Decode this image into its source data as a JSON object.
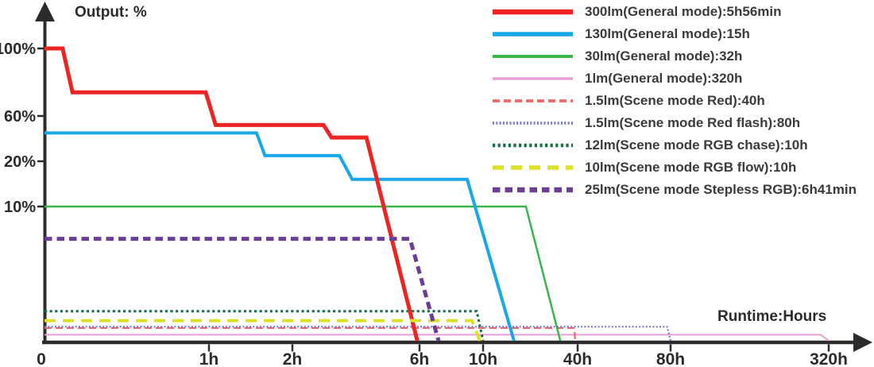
{
  "axes": {
    "y_title": "Output: %",
    "x_title": "Runtime:Hours"
  },
  "chart_data": {
    "type": "line",
    "xlabel": "Runtime:Hours",
    "ylabel": "Output: %",
    "grid": false,
    "legend_position": "top-right",
    "x_scale": "piecewise-nonlinear",
    "y_scale": "piecewise-nonlinear",
    "axis_color": "#2d2a2b",
    "x_ticks": {
      "values": [
        0,
        1,
        2,
        6,
        10,
        40,
        80,
        320
      ],
      "labels": [
        "0",
        "1h",
        "2h",
        "6h",
        "10h",
        "40h",
        "80h",
        "320h"
      ]
    },
    "y_ticks": {
      "values": [
        100,
        60,
        20,
        10
      ],
      "labels": [
        "100%",
        "60%",
        "20%",
        "10%"
      ]
    },
    "series": [
      {
        "id": "300lm-general",
        "name": "300lm(General mode):5h56min",
        "color": "#ed2424",
        "line": "solid",
        "width": 5,
        "dash": "",
        "points": [
          [
            0,
            100
          ],
          [
            0.11,
            100
          ],
          [
            0.17,
            74
          ],
          [
            0.98,
            74
          ],
          [
            1.08,
            52
          ],
          [
            2.98,
            52
          ],
          [
            3.23,
            41
          ],
          [
            4.33,
            41
          ],
          [
            5.93,
            0
          ]
        ]
      },
      {
        "id": "130lm-general",
        "name": "130lm(General mode):15h",
        "color": "#18a7e9",
        "line": "solid",
        "width": 4,
        "dash": "",
        "points": [
          [
            0,
            45
          ],
          [
            1.57,
            45
          ],
          [
            1.67,
            25
          ],
          [
            3.48,
            25
          ],
          [
            3.88,
            16
          ],
          [
            9,
            16
          ],
          [
            19.8,
            0
          ]
        ]
      },
      {
        "id": "30lm-general",
        "name": "30lm(General mode):32h",
        "color": "#3ab54a",
        "line": "solid",
        "width": 2.5,
        "dash": "",
        "points": [
          [
            0,
            10
          ],
          [
            23.6,
            10
          ],
          [
            34.5,
            0
          ]
        ]
      },
      {
        "id": "1lm-general",
        "name": "1lm(General mode):320h",
        "color": "#e89ed2",
        "line": "solid",
        "width": 2,
        "dash": "",
        "points": [
          [
            0,
            0.45
          ],
          [
            308,
            0.45
          ],
          [
            320,
            0
          ]
        ]
      },
      {
        "id": "1-5lm-scene-red",
        "name": "1.5lm(Scene mode Red):40h",
        "color": "#e96a6d",
        "line": "dashed",
        "width": 2.2,
        "dash": "9,5",
        "points": [
          [
            0,
            0.95
          ],
          [
            39,
            0.95
          ],
          [
            39.2,
            0
          ]
        ]
      },
      {
        "id": "1-5lm-scene-red-flash",
        "name": "1.5lm(Scene mode Red flash):80h",
        "color": "#7577c7",
        "line": "dotted",
        "width": 2.2,
        "dash": "2,2.3",
        "points": [
          [
            0,
            1.05
          ],
          [
            78.5,
            1.05
          ],
          [
            80,
            0
          ]
        ]
      },
      {
        "id": "12lm-rgb-chase",
        "name": "12lm(Scene mode RGB chase):10h",
        "color": "#156f42",
        "line": "dotted",
        "width": 3,
        "dash": "3.2,3.4",
        "points": [
          [
            0,
            2.2
          ],
          [
            9.6,
            2.2
          ],
          [
            10,
            0
          ]
        ]
      },
      {
        "id": "10lm-rgb-flow",
        "name": "10lm(Scene mode RGB flow):10h",
        "color": "#dce02a",
        "line": "dashed",
        "width": 4,
        "dash": "14,9",
        "points": [
          [
            0,
            1.5
          ],
          [
            9.3,
            1.5
          ],
          [
            9.8,
            0
          ]
        ]
      },
      {
        "id": "25lm-stepless-rgb",
        "name": "25lm(Scene mode Stepless RGB):6h41min",
        "color": "#6a3d96",
        "line": "dashed",
        "width": 5,
        "dash": "9.5,6",
        "points": [
          [
            0,
            7.6
          ],
          [
            5.7,
            7.6
          ],
          [
            7.2,
            0
          ]
        ]
      }
    ]
  }
}
